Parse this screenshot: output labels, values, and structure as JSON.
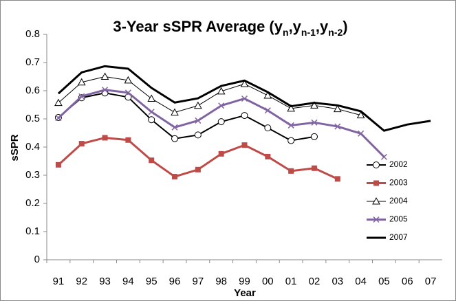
{
  "chart_data": {
    "type": "line",
    "title": [
      {
        "text": "3-Year sSPR Average (y"
      },
      {
        "text": "n",
        "sub": true
      },
      {
        "text": ",y"
      },
      {
        "text": "n-1",
        "sub": true
      },
      {
        "text": ",y"
      },
      {
        "text": "n-2",
        "sub": true
      },
      {
        "text": ")"
      }
    ],
    "x_label": "Year",
    "y_label": "sSPR",
    "categories": [
      "91",
      "92",
      "93",
      "94",
      "95",
      "96",
      "97",
      "98",
      "99",
      "00",
      "01",
      "02",
      "03",
      "04",
      "05",
      "06",
      "07"
    ],
    "ylim": [
      0,
      0.8
    ],
    "yticks": [
      0,
      0.1,
      0.2,
      0.3,
      0.4,
      0.5,
      0.6,
      0.7,
      0.8
    ],
    "grid": false,
    "legend": "right",
    "series": [
      {
        "name": "2002",
        "color": "#000000",
        "marker": "circle",
        "line_width": 2,
        "values": [
          0.505,
          0.575,
          0.592,
          0.577,
          0.497,
          0.43,
          0.443,
          0.49,
          0.512,
          0.468,
          0.423,
          0.437,
          null,
          null,
          null,
          null,
          null
        ]
      },
      {
        "name": "2003",
        "color": "#be4b48",
        "marker": "square",
        "line_width": 3,
        "values": [
          0.337,
          0.412,
          0.433,
          0.425,
          0.353,
          0.295,
          0.32,
          0.376,
          0.407,
          0.366,
          0.315,
          0.325,
          0.287,
          null,
          null,
          null,
          null
        ]
      },
      {
        "name": "2004",
        "color": "#000000",
        "marker": "triangle",
        "line_width": 1,
        "values": [
          0.557,
          0.63,
          0.65,
          0.637,
          0.572,
          0.523,
          0.547,
          0.598,
          0.624,
          0.583,
          0.537,
          0.548,
          0.535,
          0.513,
          null,
          null,
          null
        ]
      },
      {
        "name": "2005",
        "color": "#8064a2",
        "marker": "x",
        "line_width": 3,
        "values": [
          0.503,
          0.58,
          0.603,
          0.593,
          0.525,
          0.47,
          0.494,
          0.547,
          0.572,
          0.53,
          0.477,
          0.487,
          0.473,
          0.448,
          0.365,
          null,
          null
        ]
      },
      {
        "name": "2007",
        "color": "#000000",
        "marker": "none",
        "line_width": 3,
        "values": [
          0.59,
          0.665,
          0.687,
          0.678,
          0.61,
          0.558,
          0.573,
          0.617,
          0.636,
          0.595,
          0.545,
          0.557,
          0.548,
          0.527,
          0.458,
          0.48,
          0.493
        ]
      }
    ]
  }
}
